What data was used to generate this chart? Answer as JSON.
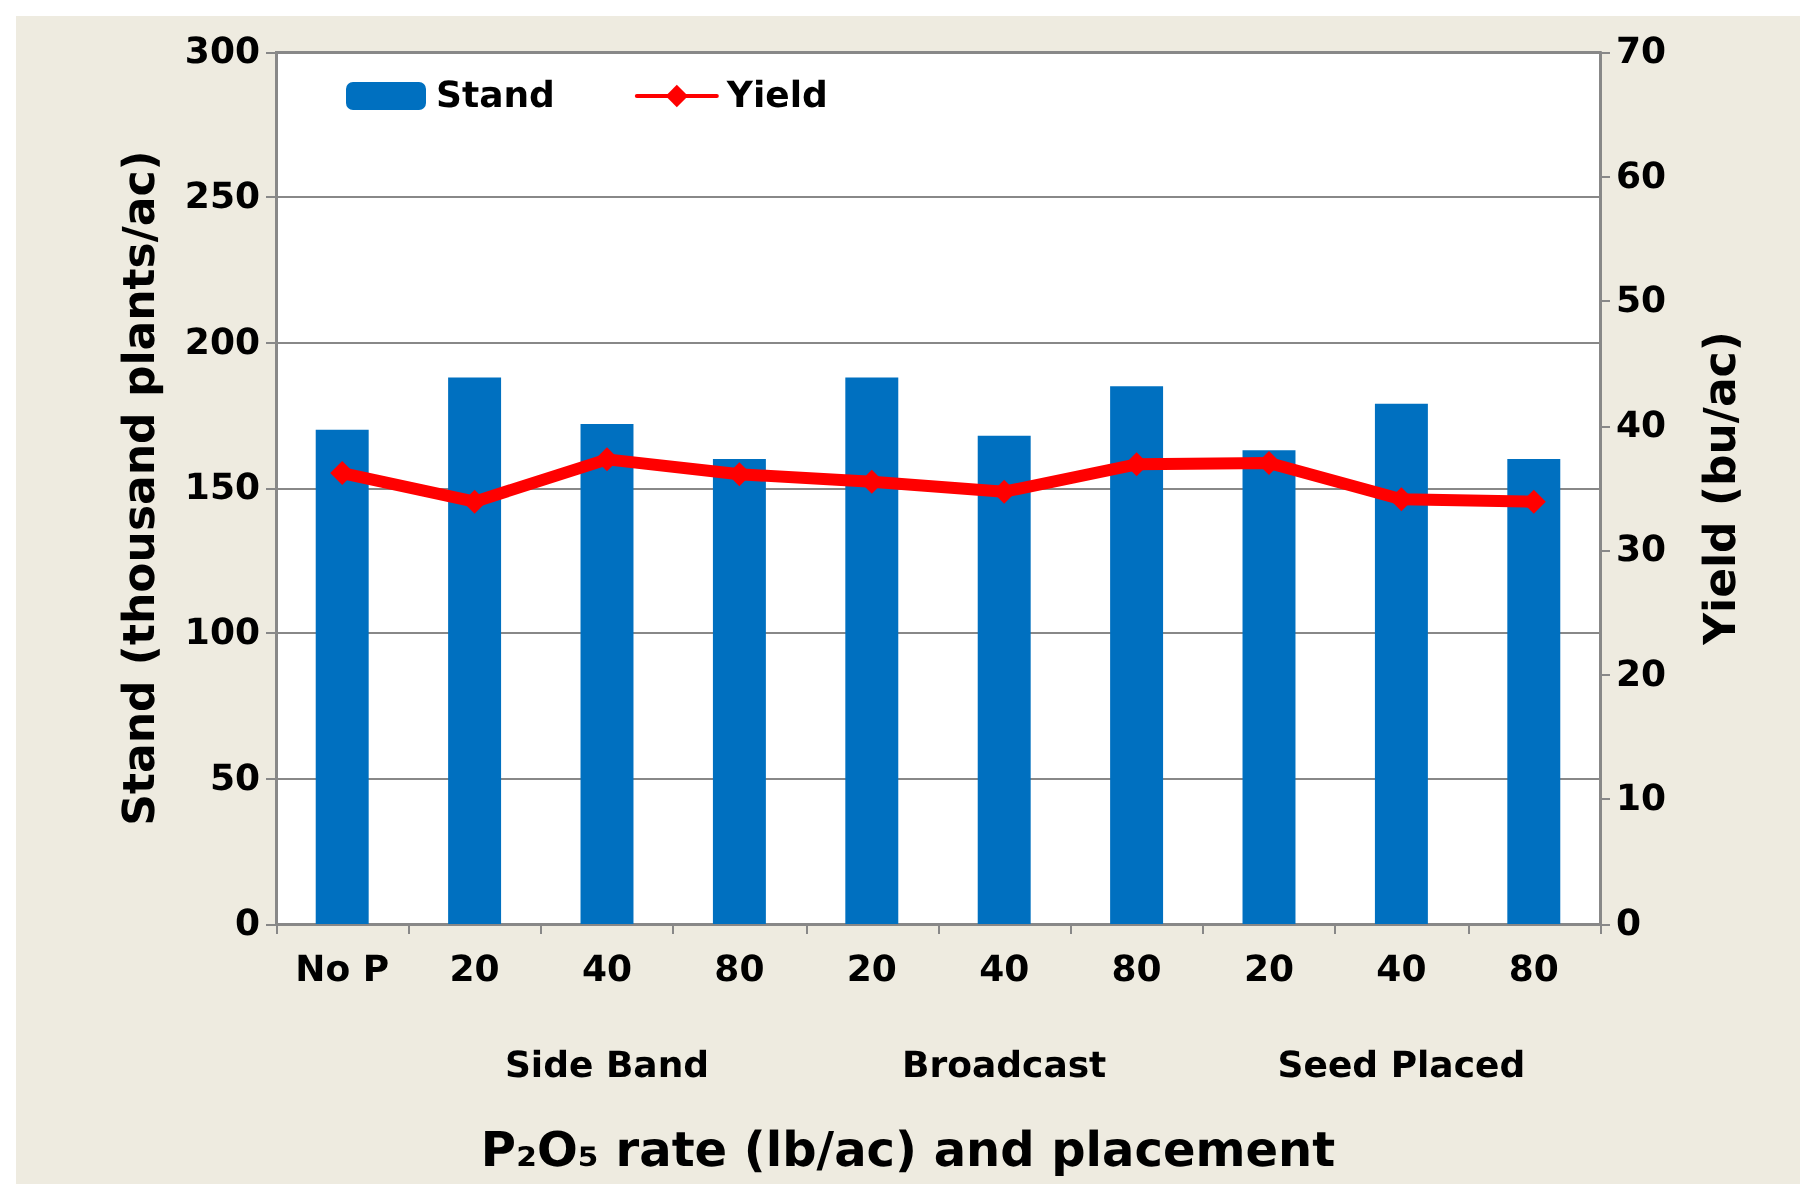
{
  "chart_data": {
    "type": "bar",
    "categories": [
      "No P",
      "20",
      "40",
      "80",
      "20",
      "40",
      "80",
      "20",
      "40",
      "80"
    ],
    "series": [
      {
        "name": "Stand",
        "color": "#0070c0",
        "values": [
          170,
          188,
          172,
          160,
          188,
          168,
          185,
          163,
          179,
          160
        ]
      },
      {
        "name": "Yield",
        "type": "line",
        "axis": "y2",
        "color": "#ff0000",
        "values": [
          36.2,
          33.9,
          37.3,
          36.1,
          35.5,
          34.7,
          36.9,
          37.0,
          34.1,
          33.9
        ]
      }
    ],
    "annotations": [
      "Side Band",
      "Broadcast",
      "Seed Placed"
    ],
    "xlabel": "P₂O₅ rate (lb/ac) and placement",
    "ylabel": "Stand (thousand plants/ac)",
    "y2label": "Yield (bu/ac)",
    "ylim": [
      0,
      300
    ],
    "yticks": [
      0,
      50,
      100,
      150,
      200,
      250,
      300
    ],
    "y2lim": [
      0,
      70
    ],
    "y2ticks": [
      0,
      10,
      20,
      30,
      40,
      50,
      60,
      70
    ],
    "grid": "y",
    "legend": "top left",
    "marker": "diamond",
    "line_style": "solid"
  }
}
